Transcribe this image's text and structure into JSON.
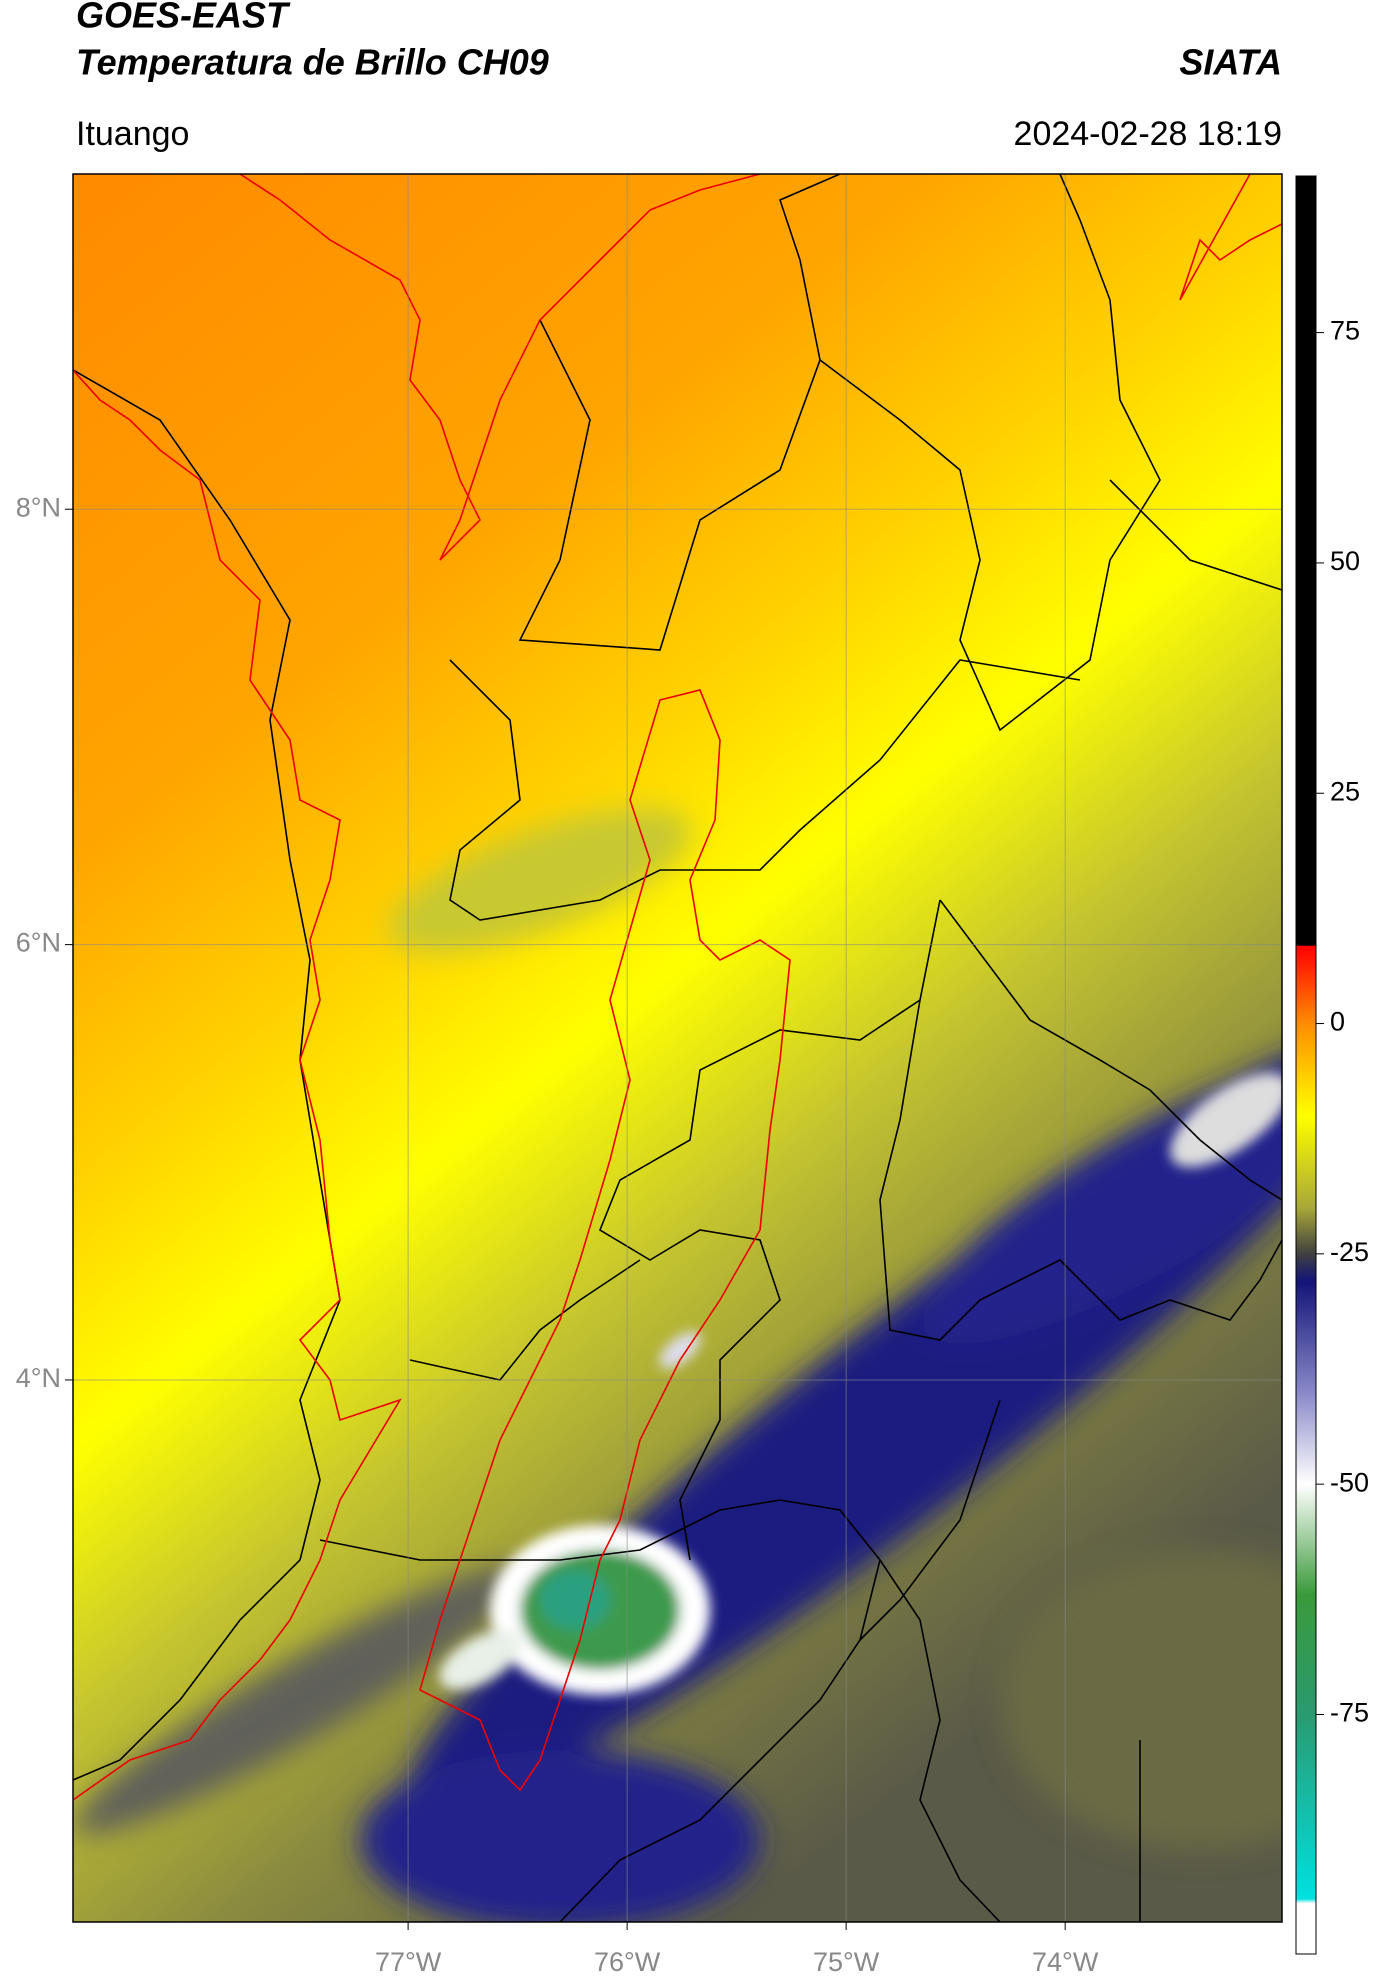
{
  "header": {
    "title": "GOES-EAST",
    "subtitle": "Temperatura de Brillo CH09",
    "agency": "SIATA",
    "location": "Ituango",
    "timestamp": "2024-02-28 18:19"
  },
  "map": {
    "xlim": [
      -78.53,
      -73.01
    ],
    "ylim": [
      1.51,
      9.54
    ],
    "xticks": [
      {
        "value": -77,
        "label": "77°W"
      },
      {
        "value": -76,
        "label": "76°W"
      },
      {
        "value": -75,
        "label": "75°W"
      },
      {
        "value": -74,
        "label": "74°W"
      }
    ],
    "yticks": [
      {
        "value": 8,
        "label": "8°N"
      },
      {
        "value": 6,
        "label": "6°N"
      },
      {
        "value": 4,
        "label": "4°N"
      }
    ],
    "grid": true
  },
  "colorbar": {
    "lim": [
      -101,
      92
    ],
    "ticks": [
      75,
      50,
      25,
      0,
      -25,
      -50,
      -75
    ],
    "stops": [
      {
        "value": 92,
        "color": "#000000"
      },
      {
        "value": 8.5,
        "color": "#000000"
      },
      {
        "value": 8.4,
        "color": "#ff0000"
      },
      {
        "value": 0,
        "color": "#ff8c00"
      },
      {
        "value": -10,
        "color": "#ffff00"
      },
      {
        "value": -20,
        "color": "#a8a838"
      },
      {
        "value": -25,
        "color": "#404040"
      },
      {
        "value": -28,
        "color": "#141478"
      },
      {
        "value": -40,
        "color": "#8888c8"
      },
      {
        "value": -50,
        "color": "#ffffff"
      },
      {
        "value": -62,
        "color": "#3a9a3a"
      },
      {
        "value": -75,
        "color": "#2a9a70"
      },
      {
        "value": -95,
        "color": "#00e0e0"
      },
      {
        "value": -95.5,
        "color": "#ffffff"
      },
      {
        "value": -101,
        "color": "#ffffff"
      }
    ]
  }
}
